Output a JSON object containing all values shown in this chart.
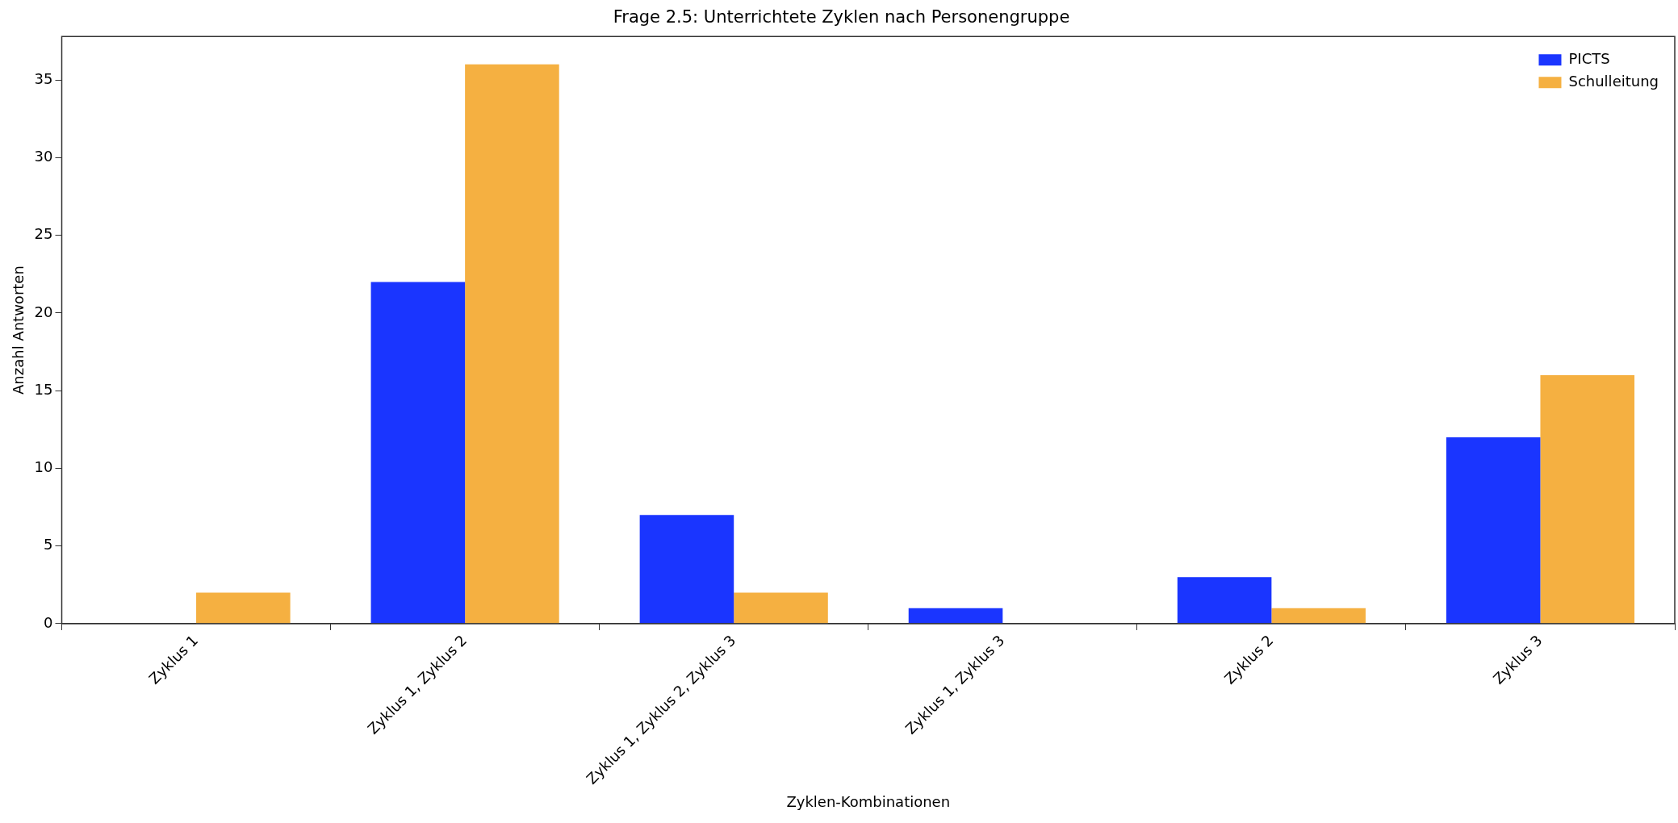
{
  "chart_data": {
    "type": "bar",
    "title": "Frage 2.5: Unterrichtete Zyklen nach Personengruppe",
    "xlabel": "Zyklen-Kombinationen",
    "ylabel": "Anzahl Antworten",
    "categories": [
      "Zyklus 1",
      "Zyklus 1, Zyklus 2",
      "Zyklus 1, Zyklus 2, Zyklus 3",
      "Zyklus 1, Zyklus 3",
      "Zyklus 2",
      "Zyklus 3"
    ],
    "series": [
      {
        "name": "PICTS",
        "color": "#1a35ff",
        "values": [
          0,
          22,
          7,
          1,
          3,
          12
        ]
      },
      {
        "name": "Schulleitung",
        "color": "#f5b041",
        "values": [
          2,
          36,
          2,
          0,
          1,
          16
        ]
      }
    ],
    "ylim": [
      0,
      37.8
    ],
    "yticks": [
      0,
      5,
      10,
      15,
      20,
      25,
      30,
      35
    ],
    "grid": false,
    "legend": "top right"
  }
}
